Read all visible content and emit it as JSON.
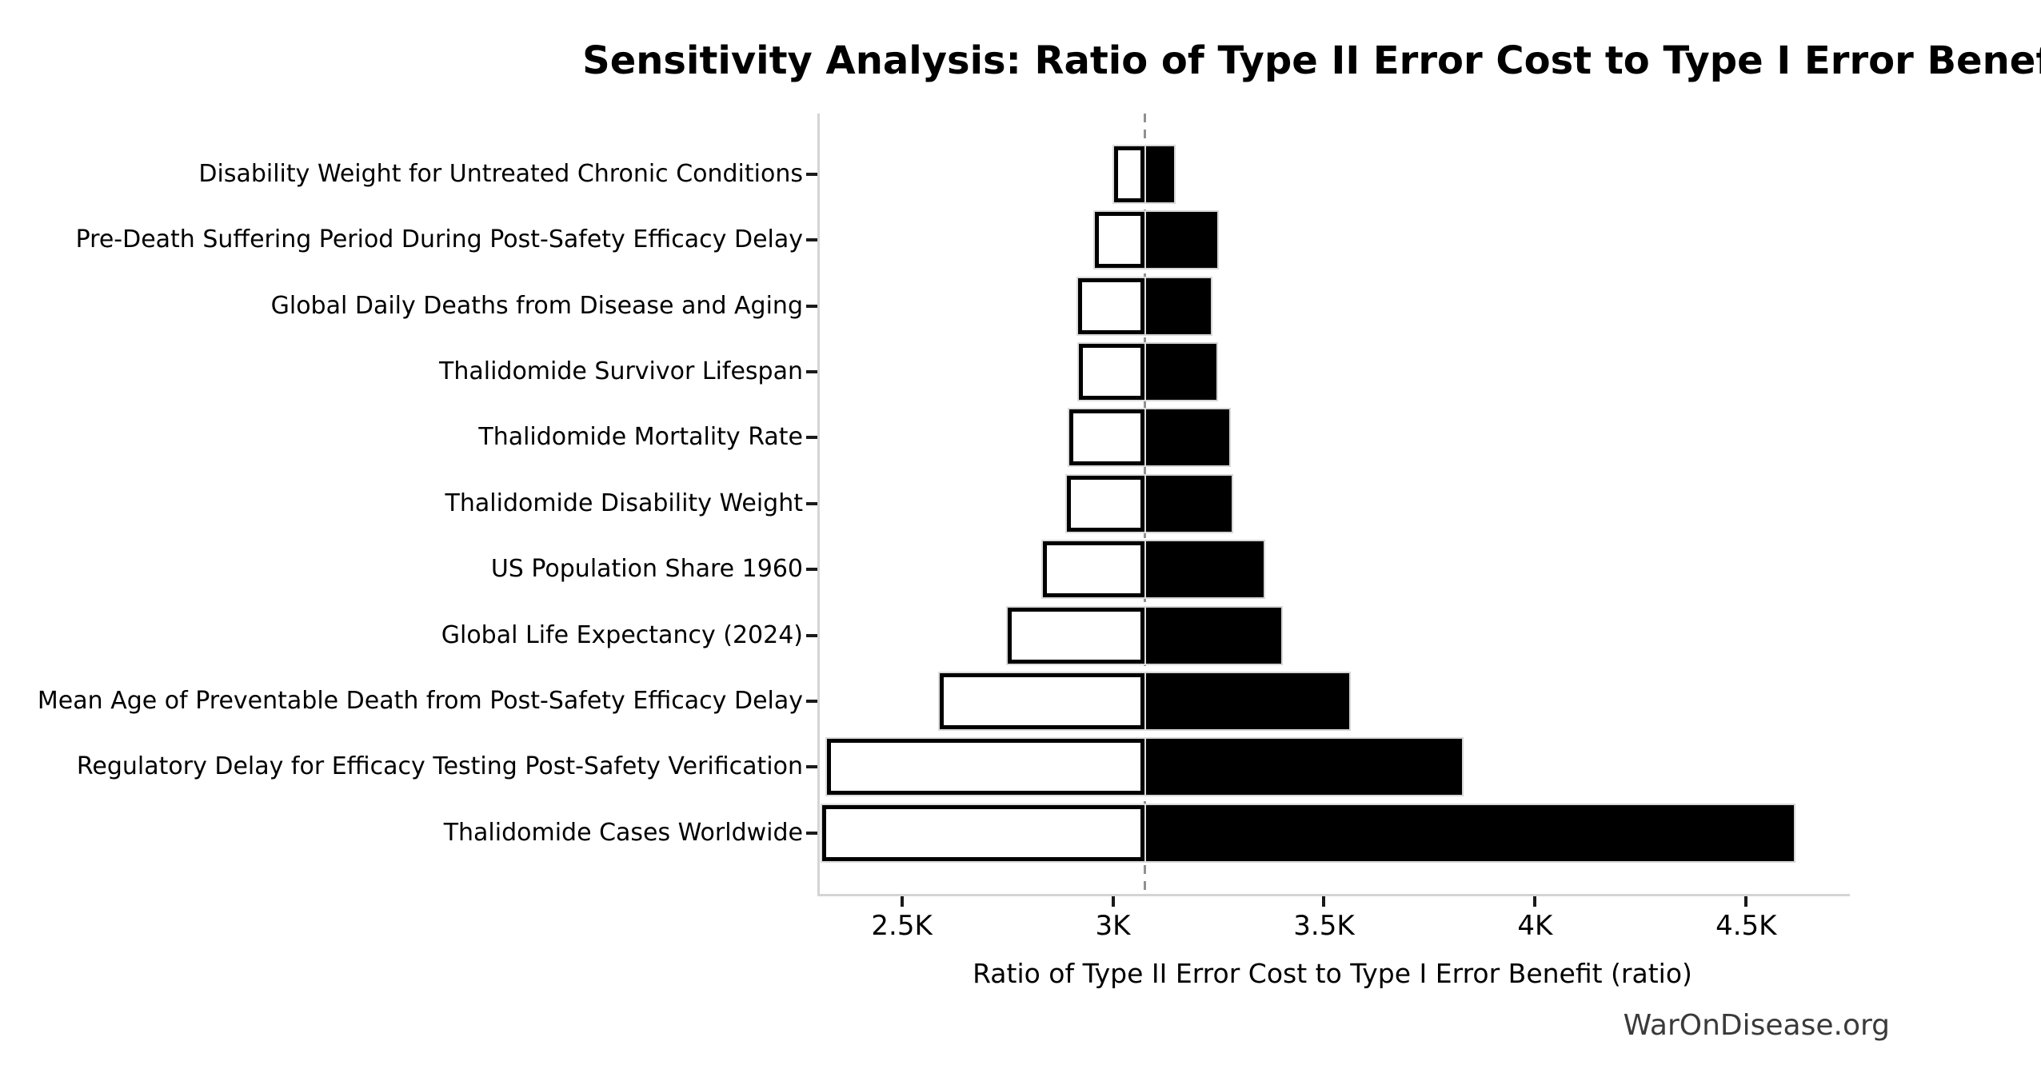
{
  "title": "Sensitivity Analysis: Ratio of Type II Error Cost to Type I Error Benefit",
  "watermark": "WarOnDisease.org",
  "chart_data": {
    "type": "bar",
    "subtype": "tornado",
    "title": "Sensitivity Analysis: Ratio of Type II Error Cost to Type I Error Benefit",
    "xlabel": "Ratio of Type II Error Cost to Type I Error Benefit (ratio)",
    "ylabel": "",
    "baseline": 3070,
    "xlim": [
      2300,
      4740
    ],
    "grid": false,
    "x_ticks": [
      {
        "value": 2500,
        "label": "2.5K"
      },
      {
        "value": 3000,
        "label": "3K"
      },
      {
        "value": 3500,
        "label": "3.5K"
      },
      {
        "value": 4000,
        "label": "4K"
      },
      {
        "value": 4500,
        "label": "4.5K"
      }
    ],
    "colors": {
      "low_fill": "#ffffff",
      "low_edge": "#000000",
      "high_fill": "#000000",
      "baseline_line": "#909090",
      "spine": "#d4d4d4",
      "tick_mark": "#1a1a1a",
      "watermark_text": "#3a3a3a"
    },
    "rows": [
      {
        "label": "Disability Weight for Untreated Chronic Conditions",
        "low": 3002,
        "high": 3140
      },
      {
        "label": "Pre-Death Suffering Period During Post-Safety Efficacy Delay",
        "low": 2957,
        "high": 3242
      },
      {
        "label": "Global Daily Deaths from Disease and Aging",
        "low": 2917,
        "high": 3226
      },
      {
        "label": "Thalidomide Survivor Lifespan",
        "low": 2918,
        "high": 3240
      },
      {
        "label": "Thalidomide Mortality Rate",
        "low": 2895,
        "high": 3270
      },
      {
        "label": "Thalidomide Disability Weight",
        "low": 2890,
        "high": 3275
      },
      {
        "label": "US Population Share 1960",
        "low": 2833,
        "high": 3351
      },
      {
        "label": "Global Life Expectancy (2024)",
        "low": 2749,
        "high": 3393
      },
      {
        "label": "Mean Age of Preventable Death from Post-Safety Efficacy Delay",
        "low": 2588,
        "high": 3555
      },
      {
        "label": "Regulatory Delay for Efficacy Testing Post-Safety Verification",
        "low": 2322,
        "high": 3821
      },
      {
        "label": "Thalidomide Cases Worldwide",
        "low": 2310,
        "high": 4608
      }
    ]
  }
}
